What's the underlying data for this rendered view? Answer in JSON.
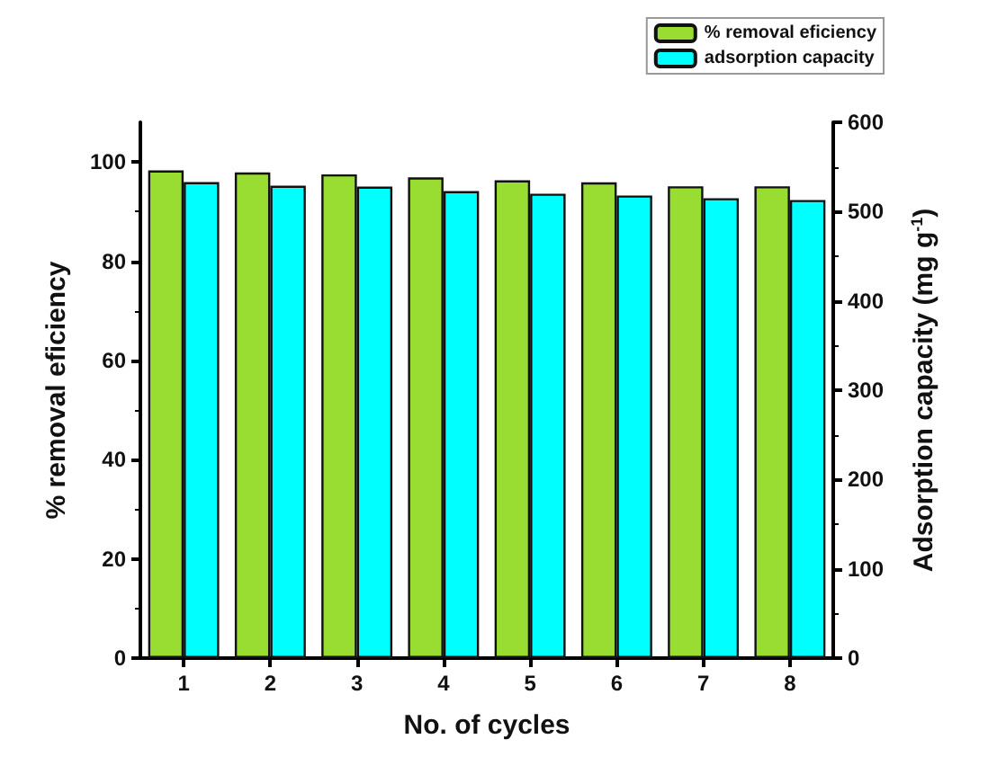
{
  "chart_data": {
    "type": "bar",
    "xlabel": "No. of cycles",
    "ylabel": "% removal eficiency",
    "y2label": "Adsorption capacity (mg g$^{-1}$)",
    "categories": [
      "1",
      "2",
      "3",
      "4",
      "5",
      "6",
      "7",
      "8"
    ],
    "series": [
      {
        "name": "% removal eficiency",
        "color": "#99dd33",
        "values": [
          98.3,
          97.9,
          97.5,
          96.9,
          96.3,
          95.9,
          95.1,
          95.1
        ]
      },
      {
        "name": "adsorption capacity",
        "color": "#00ffff",
        "axis": "y2",
        "values": [
          533,
          529,
          528,
          523,
          520,
          518,
          515,
          513
        ]
      }
    ],
    "ylim": [
      0,
      108
    ],
    "yticks": [
      0,
      20,
      40,
      60,
      80,
      100
    ],
    "y2lim": [
      0,
      600
    ],
    "y2ticks": [
      0,
      100,
      200,
      300,
      400,
      500,
      600
    ],
    "legend": "top right",
    "grid": false
  }
}
